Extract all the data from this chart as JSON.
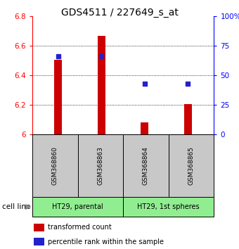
{
  "title": "GDS4511 / 227649_s_at",
  "samples": [
    "GSM368860",
    "GSM368863",
    "GSM368864",
    "GSM368865"
  ],
  "bar_values": [
    6.505,
    6.665,
    6.082,
    6.205
  ],
  "bar_bottom": 6.0,
  "percentile_values": [
    66,
    66,
    43,
    43
  ],
  "percentile_scale_max": 100,
  "ylim": [
    6.0,
    6.8
  ],
  "yticks_left": [
    6.0,
    6.2,
    6.4,
    6.6,
    6.8
  ],
  "ytick_left_labels": [
    "6",
    "6.2",
    "6.4",
    "6.6",
    "6.8"
  ],
  "yticks_right": [
    0,
    25,
    50,
    75,
    100
  ],
  "ytick_right_labels": [
    "0",
    "25",
    "50",
    "75",
    "100%"
  ],
  "bar_color": "#cc0000",
  "dot_color": "#2222cc",
  "cell_lines": [
    "HT29, parental",
    "HT29, 1st spheres"
  ],
  "cell_line_groups": [
    [
      0,
      1
    ],
    [
      2,
      3
    ]
  ],
  "cell_line_bg": "#90ee90",
  "sample_bg": "#c8c8c8",
  "legend_red": "transformed count",
  "legend_blue": "percentile rank within the sample",
  "bar_width": 0.18
}
